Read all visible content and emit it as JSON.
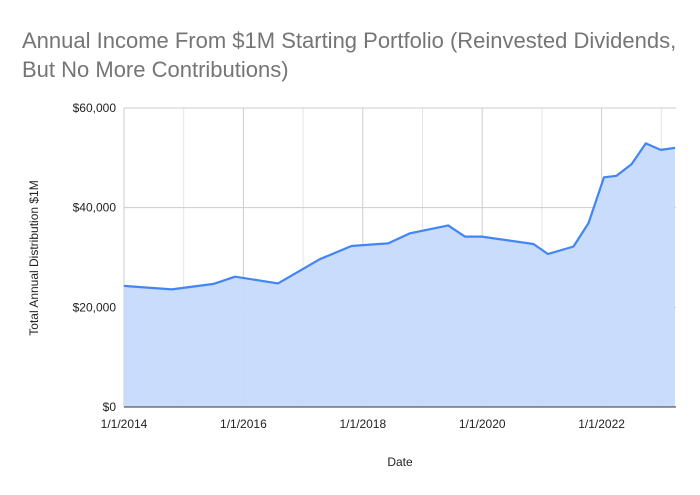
{
  "chart_data": {
    "type": "area",
    "title": "Annual Income From $1M Starting Portfolio (Reinvested Dividends, But No More Contributions)",
    "xlabel": "Date",
    "ylabel": "Total Annual Distribution $1M",
    "ylim": [
      0,
      60000
    ],
    "xlim": [
      2014.0,
      2023.25
    ],
    "yticks": [
      {
        "v": 0,
        "label": "$0"
      },
      {
        "v": 20000,
        "label": "$20,000"
      },
      {
        "v": 40000,
        "label": "$40,000"
      },
      {
        "v": 60000,
        "label": "$60,000"
      }
    ],
    "xticks": [
      {
        "v": 2014,
        "label": "1/1/2014"
      },
      {
        "v": 2016,
        "label": "1/1/2016"
      },
      {
        "v": 2018,
        "label": "1/1/2018"
      },
      {
        "v": 2020,
        "label": "1/1/2020"
      },
      {
        "v": 2022,
        "label": "1/1/2022"
      }
    ],
    "grid": true,
    "legend": "none",
    "color": "#4285f4",
    "fill": "#c6dafc",
    "series": [
      {
        "name": "Total Annual Distribution $1M",
        "x": [
          2014.0,
          2014.8,
          2015.5,
          2015.86,
          2016.58,
          2017.28,
          2017.81,
          2018.43,
          2018.79,
          2019.43,
          2019.71,
          2019.99,
          2020.86,
          2021.1,
          2021.53,
          2021.78,
          2022.04,
          2022.25,
          2022.5,
          2022.74,
          2022.99,
          2023.23
        ],
        "values": [
          24300,
          23600,
          24700,
          26150,
          24800,
          29650,
          32300,
          32850,
          34850,
          36450,
          34200,
          34200,
          32700,
          30700,
          32200,
          36900,
          46100,
          46400,
          48700,
          52900,
          51600,
          52000
        ]
      }
    ]
  }
}
